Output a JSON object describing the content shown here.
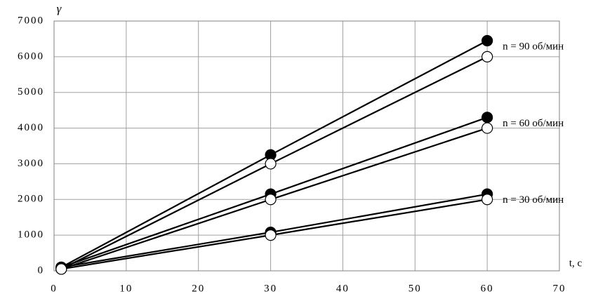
{
  "chart_data": {
    "type": "line",
    "y_label": "γ",
    "x_label": "t, c",
    "x": [
      1,
      30,
      60
    ],
    "series": [
      {
        "name": "n = 90 об/мин",
        "marker": "filled",
        "color": "#000000",
        "values": [
          100,
          3250,
          6450
        ]
      },
      {
        "marker": "open",
        "color": "#000000",
        "values": [
          50,
          3000,
          6000
        ]
      },
      {
        "name": "n = 60 об/мин",
        "marker": "filled",
        "color": "#000000",
        "values": [
          100,
          2150,
          4300
        ]
      },
      {
        "marker": "open",
        "color": "#000000",
        "values": [
          50,
          2000,
          4000
        ]
      },
      {
        "name": "n = 30 об/мин",
        "marker": "filled",
        "color": "#000000",
        "values": [
          100,
          1080,
          2150
        ]
      },
      {
        "marker": "open",
        "color": "#000000",
        "values": [
          50,
          1000,
          2000
        ]
      }
    ],
    "xlim": [
      0,
      70
    ],
    "xticks": [
      0,
      10,
      20,
      30,
      40,
      50,
      60,
      70
    ],
    "ylim": [
      0,
      7000
    ],
    "yticks": [
      0,
      1000,
      2000,
      3000,
      4000,
      5000,
      6000,
      7000
    ],
    "grid": true
  }
}
